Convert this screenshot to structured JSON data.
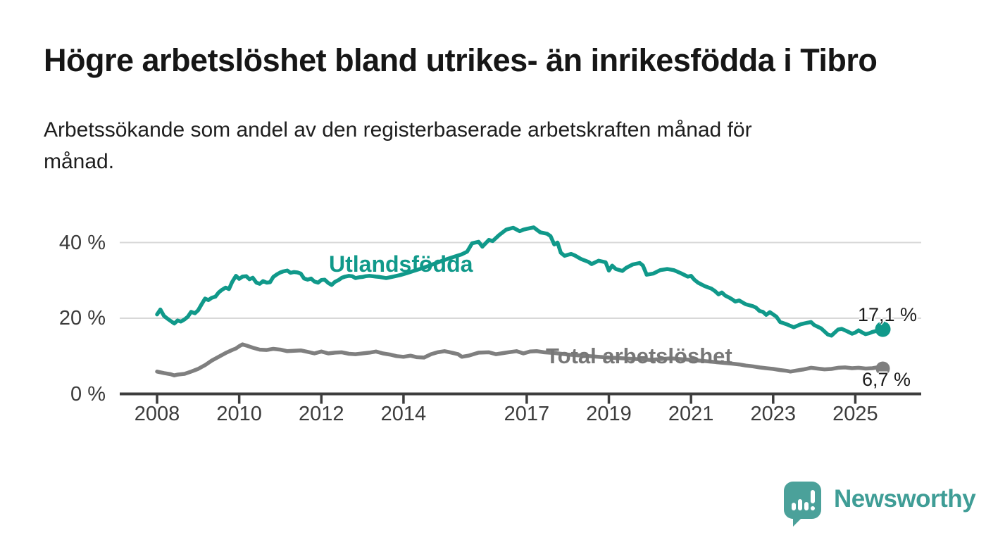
{
  "chart_data": {
    "type": "line",
    "title": "Högre arbetslöshet bland utrikes- än inrikesfödda i Tibro",
    "subtitle": "Arbetssökande som andel av den registerbaserade arbetskraften månad för månad.",
    "grid": "horizontal",
    "legend": "inline-labels-on-lines",
    "x_axis": {
      "range": [
        2007.1,
        2026.6
      ],
      "ticks": [
        {
          "value": 2008,
          "label": "2008"
        },
        {
          "value": 2010,
          "label": "2010"
        },
        {
          "value": 2012,
          "label": "2012"
        },
        {
          "value": 2014,
          "label": "2014"
        },
        {
          "value": 2017,
          "label": "2017"
        },
        {
          "value": 2019,
          "label": "2019"
        },
        {
          "value": 2021,
          "label": "2021"
        },
        {
          "value": 2023,
          "label": "2023"
        },
        {
          "value": 2025,
          "label": "2025"
        }
      ]
    },
    "y_axis": {
      "unit": "%",
      "range": [
        0,
        47
      ],
      "ticks": [
        {
          "value": 0,
          "label": "0 %"
        },
        {
          "value": 20,
          "label": "20 %"
        },
        {
          "value": 40,
          "label": "40 %"
        }
      ]
    },
    "series": [
      {
        "name": "Utlandsfödda",
        "color": "#10998a",
        "end_value": 17.1,
        "end_label": "17,1 %",
        "points": [
          [
            2008.0,
            21.0
          ],
          [
            2008.08,
            22.3
          ],
          [
            2008.17,
            20.6
          ],
          [
            2008.25,
            19.9
          ],
          [
            2008.33,
            19.3
          ],
          [
            2008.42,
            18.6
          ],
          [
            2008.5,
            19.4
          ],
          [
            2008.58,
            19.1
          ],
          [
            2008.67,
            19.7
          ],
          [
            2008.75,
            20.4
          ],
          [
            2008.83,
            21.7
          ],
          [
            2008.92,
            21.3
          ],
          [
            2009.0,
            22.1
          ],
          [
            2009.08,
            23.6
          ],
          [
            2009.17,
            25.2
          ],
          [
            2009.25,
            24.8
          ],
          [
            2009.33,
            25.4
          ],
          [
            2009.42,
            25.7
          ],
          [
            2009.5,
            26.8
          ],
          [
            2009.58,
            27.5
          ],
          [
            2009.67,
            28.1
          ],
          [
            2009.75,
            27.7
          ],
          [
            2009.83,
            29.6
          ],
          [
            2009.92,
            31.2
          ],
          [
            2010.0,
            30.4
          ],
          [
            2010.08,
            31.0
          ],
          [
            2010.17,
            31.1
          ],
          [
            2010.25,
            30.3
          ],
          [
            2010.33,
            30.7
          ],
          [
            2010.42,
            29.4
          ],
          [
            2010.5,
            29.1
          ],
          [
            2010.58,
            29.8
          ],
          [
            2010.67,
            29.4
          ],
          [
            2010.75,
            29.5
          ],
          [
            2010.83,
            30.9
          ],
          [
            2010.92,
            31.6
          ],
          [
            2011.0,
            32.1
          ],
          [
            2011.08,
            32.4
          ],
          [
            2011.17,
            32.6
          ],
          [
            2011.25,
            32.0
          ],
          [
            2011.33,
            32.2
          ],
          [
            2011.42,
            32.1
          ],
          [
            2011.5,
            31.8
          ],
          [
            2011.58,
            30.5
          ],
          [
            2011.67,
            30.2
          ],
          [
            2011.75,
            30.5
          ],
          [
            2011.83,
            29.7
          ],
          [
            2011.92,
            29.4
          ],
          [
            2012.0,
            30.1
          ],
          [
            2012.08,
            30.2
          ],
          [
            2012.17,
            29.3
          ],
          [
            2012.25,
            28.8
          ],
          [
            2012.33,
            29.6
          ],
          [
            2012.42,
            30.1
          ],
          [
            2012.5,
            30.7
          ],
          [
            2012.58,
            31.0
          ],
          [
            2012.67,
            31.2
          ],
          [
            2012.75,
            31.1
          ],
          [
            2012.83,
            30.6
          ],
          [
            2012.92,
            30.8
          ],
          [
            2013.0,
            30.9
          ],
          [
            2013.08,
            31.1
          ],
          [
            2013.17,
            31.2
          ],
          [
            2013.25,
            31.1
          ],
          [
            2013.33,
            31.0
          ],
          [
            2013.42,
            30.9
          ],
          [
            2013.58,
            30.6
          ],
          [
            2013.75,
            31.0
          ],
          [
            2013.92,
            31.4
          ],
          [
            2014.08,
            31.9
          ],
          [
            2014.25,
            32.5
          ],
          [
            2014.42,
            33.1
          ],
          [
            2014.58,
            33.7
          ],
          [
            2014.75,
            34.4
          ],
          [
            2014.92,
            35.1
          ],
          [
            2015.08,
            35.7
          ],
          [
            2015.25,
            36.3
          ],
          [
            2015.42,
            36.9
          ],
          [
            2015.55,
            37.6
          ],
          [
            2015.67,
            39.8
          ],
          [
            2015.83,
            40.2
          ],
          [
            2015.92,
            38.9
          ],
          [
            2016.08,
            40.7
          ],
          [
            2016.17,
            40.4
          ],
          [
            2016.33,
            42.0
          ],
          [
            2016.5,
            43.4
          ],
          [
            2016.67,
            43.9
          ],
          [
            2016.83,
            43.0
          ],
          [
            2016.92,
            43.4
          ],
          [
            2017.0,
            43.6
          ],
          [
            2017.17,
            44.0
          ],
          [
            2017.33,
            42.7
          ],
          [
            2017.5,
            42.3
          ],
          [
            2017.58,
            41.7
          ],
          [
            2017.67,
            39.5
          ],
          [
            2017.75,
            40.0
          ],
          [
            2017.83,
            37.3
          ],
          [
            2017.92,
            36.5
          ],
          [
            2018.08,
            37.0
          ],
          [
            2018.17,
            36.6
          ],
          [
            2018.33,
            35.6
          ],
          [
            2018.5,
            34.9
          ],
          [
            2018.58,
            34.3
          ],
          [
            2018.75,
            35.2
          ],
          [
            2018.92,
            34.8
          ],
          [
            2019.0,
            32.6
          ],
          [
            2019.08,
            33.9
          ],
          [
            2019.17,
            33.0
          ],
          [
            2019.33,
            32.5
          ],
          [
            2019.42,
            33.3
          ],
          [
            2019.58,
            34.2
          ],
          [
            2019.75,
            34.6
          ],
          [
            2019.83,
            33.9
          ],
          [
            2019.92,
            31.5
          ],
          [
            2020.08,
            31.8
          ],
          [
            2020.25,
            32.7
          ],
          [
            2020.42,
            33.0
          ],
          [
            2020.58,
            32.7
          ],
          [
            2020.75,
            31.9
          ],
          [
            2020.92,
            31.0
          ],
          [
            2021.0,
            31.2
          ],
          [
            2021.08,
            30.2
          ],
          [
            2021.17,
            29.4
          ],
          [
            2021.33,
            28.5
          ],
          [
            2021.5,
            27.8
          ],
          [
            2021.58,
            27.2
          ],
          [
            2021.67,
            26.3
          ],
          [
            2021.75,
            26.8
          ],
          [
            2021.83,
            26.0
          ],
          [
            2021.92,
            25.5
          ],
          [
            2022.0,
            25.0
          ],
          [
            2022.08,
            24.4
          ],
          [
            2022.17,
            24.7
          ],
          [
            2022.33,
            23.7
          ],
          [
            2022.5,
            23.2
          ],
          [
            2022.58,
            22.8
          ],
          [
            2022.67,
            21.9
          ],
          [
            2022.75,
            21.7
          ],
          [
            2022.83,
            20.9
          ],
          [
            2022.92,
            21.6
          ],
          [
            2023.08,
            20.4
          ],
          [
            2023.17,
            19.0
          ],
          [
            2023.33,
            18.4
          ],
          [
            2023.5,
            17.6
          ],
          [
            2023.67,
            18.4
          ],
          [
            2023.83,
            18.8
          ],
          [
            2023.92,
            19.0
          ],
          [
            2024.0,
            18.2
          ],
          [
            2024.17,
            17.3
          ],
          [
            2024.33,
            15.7
          ],
          [
            2024.42,
            15.4
          ],
          [
            2024.58,
            17.0
          ],
          [
            2024.67,
            17.2
          ],
          [
            2024.75,
            16.8
          ],
          [
            2024.83,
            16.4
          ],
          [
            2024.92,
            15.9
          ],
          [
            2025.0,
            16.2
          ],
          [
            2025.08,
            16.8
          ],
          [
            2025.17,
            16.2
          ],
          [
            2025.25,
            15.8
          ],
          [
            2025.33,
            16.0
          ],
          [
            2025.42,
            16.4
          ],
          [
            2025.5,
            16.6
          ],
          [
            2025.58,
            16.9
          ],
          [
            2025.67,
            17.1
          ]
        ]
      },
      {
        "name": "Total arbetslöshet",
        "color": "#7f7f7f",
        "end_value": 6.7,
        "end_label": "6,7 %",
        "points": [
          [
            2008.0,
            5.9
          ],
          [
            2008.17,
            5.5
          ],
          [
            2008.33,
            5.2
          ],
          [
            2008.42,
            4.9
          ],
          [
            2008.5,
            5.1
          ],
          [
            2008.67,
            5.3
          ],
          [
            2008.83,
            5.9
          ],
          [
            2009.0,
            6.6
          ],
          [
            2009.17,
            7.6
          ],
          [
            2009.33,
            8.8
          ],
          [
            2009.5,
            9.8
          ],
          [
            2009.67,
            10.8
          ],
          [
            2009.83,
            11.6
          ],
          [
            2009.92,
            12.0
          ],
          [
            2010.0,
            12.6
          ],
          [
            2010.08,
            13.1
          ],
          [
            2010.17,
            12.8
          ],
          [
            2010.33,
            12.2
          ],
          [
            2010.5,
            11.7
          ],
          [
            2010.67,
            11.6
          ],
          [
            2010.83,
            11.9
          ],
          [
            2011.0,
            11.7
          ],
          [
            2011.17,
            11.3
          ],
          [
            2011.33,
            11.4
          ],
          [
            2011.5,
            11.5
          ],
          [
            2011.67,
            11.1
          ],
          [
            2011.83,
            10.7
          ],
          [
            2012.0,
            11.2
          ],
          [
            2012.17,
            10.7
          ],
          [
            2012.33,
            10.9
          ],
          [
            2012.5,
            11.0
          ],
          [
            2012.67,
            10.6
          ],
          [
            2012.83,
            10.5
          ],
          [
            2013.0,
            10.7
          ],
          [
            2013.17,
            10.9
          ],
          [
            2013.33,
            11.2
          ],
          [
            2013.5,
            10.7
          ],
          [
            2013.67,
            10.4
          ],
          [
            2013.83,
            10.0
          ],
          [
            2014.0,
            9.8
          ],
          [
            2014.17,
            10.1
          ],
          [
            2014.33,
            9.7
          ],
          [
            2014.5,
            9.6
          ],
          [
            2014.67,
            10.5
          ],
          [
            2014.83,
            11.0
          ],
          [
            2015.0,
            11.3
          ],
          [
            2015.17,
            10.9
          ],
          [
            2015.33,
            10.5
          ],
          [
            2015.42,
            9.8
          ],
          [
            2015.58,
            10.1
          ],
          [
            2015.83,
            10.9
          ],
          [
            2016.08,
            11.0
          ],
          [
            2016.25,
            10.5
          ],
          [
            2016.5,
            10.9
          ],
          [
            2016.75,
            11.3
          ],
          [
            2016.92,
            10.7
          ],
          [
            2017.08,
            11.2
          ],
          [
            2017.25,
            11.3
          ],
          [
            2017.42,
            11.0
          ],
          [
            2017.67,
            10.8
          ],
          [
            2018.0,
            10.4
          ],
          [
            2018.5,
            10.0
          ],
          [
            2019.0,
            9.6
          ],
          [
            2019.5,
            9.3
          ],
          [
            2020.0,
            9.0
          ],
          [
            2020.5,
            9.4
          ],
          [
            2021.0,
            9.0
          ],
          [
            2021.5,
            8.5
          ],
          [
            2022.0,
            8.0
          ],
          [
            2022.17,
            7.8
          ],
          [
            2022.33,
            7.5
          ],
          [
            2022.5,
            7.3
          ],
          [
            2022.67,
            7.0
          ],
          [
            2022.83,
            6.8
          ],
          [
            2023.0,
            6.6
          ],
          [
            2023.17,
            6.3
          ],
          [
            2023.33,
            6.1
          ],
          [
            2023.42,
            5.9
          ],
          [
            2023.58,
            6.2
          ],
          [
            2023.75,
            6.5
          ],
          [
            2023.92,
            6.9
          ],
          [
            2024.08,
            6.7
          ],
          [
            2024.25,
            6.5
          ],
          [
            2024.42,
            6.6
          ],
          [
            2024.58,
            6.9
          ],
          [
            2024.75,
            7.0
          ],
          [
            2024.92,
            6.8
          ],
          [
            2025.08,
            6.9
          ],
          [
            2025.25,
            6.7
          ],
          [
            2025.42,
            6.8
          ],
          [
            2025.58,
            7.1
          ],
          [
            2025.67,
            6.7
          ]
        ]
      }
    ],
    "style": {
      "grid_color": "#d8d8d8",
      "axis_color": "#3d3d3d",
      "tick_label_color": "#3c3c3c"
    }
  },
  "branding": {
    "wordmark": "Newsworthy",
    "logo_icon": "speech-bubble-bar-chart-icon",
    "logo_color": "#4ba19a",
    "wordmark_color": "#3f9d96"
  }
}
